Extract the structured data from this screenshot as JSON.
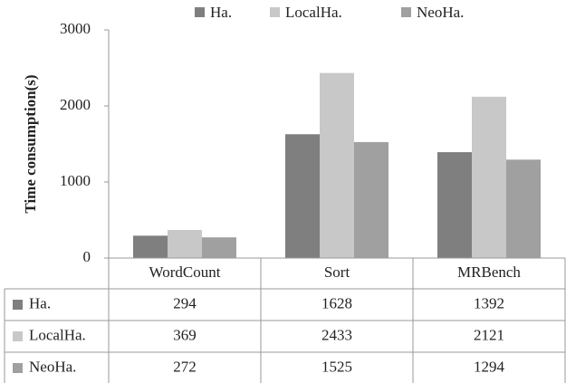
{
  "chart_data": {
    "type": "bar",
    "y_label": "Time consumption(s)",
    "categories": [
      "WordCount",
      "Sort",
      "MRBench"
    ],
    "series": [
      {
        "name": "Ha.",
        "color": "#7f7f7f",
        "values": [
          294,
          1628,
          1392
        ]
      },
      {
        "name": "LocalHa.",
        "color": "#c8c8c8",
        "values": [
          369,
          2433,
          2121
        ]
      },
      {
        "name": "NeoHa.",
        "color": "#a0a0a0",
        "values": [
          272,
          1525,
          1294
        ]
      }
    ],
    "ylim": [
      0,
      3000
    ],
    "yticks": [
      0,
      1000,
      2000,
      3000
    ],
    "grid": false,
    "legend": "top",
    "data_table": true
  }
}
